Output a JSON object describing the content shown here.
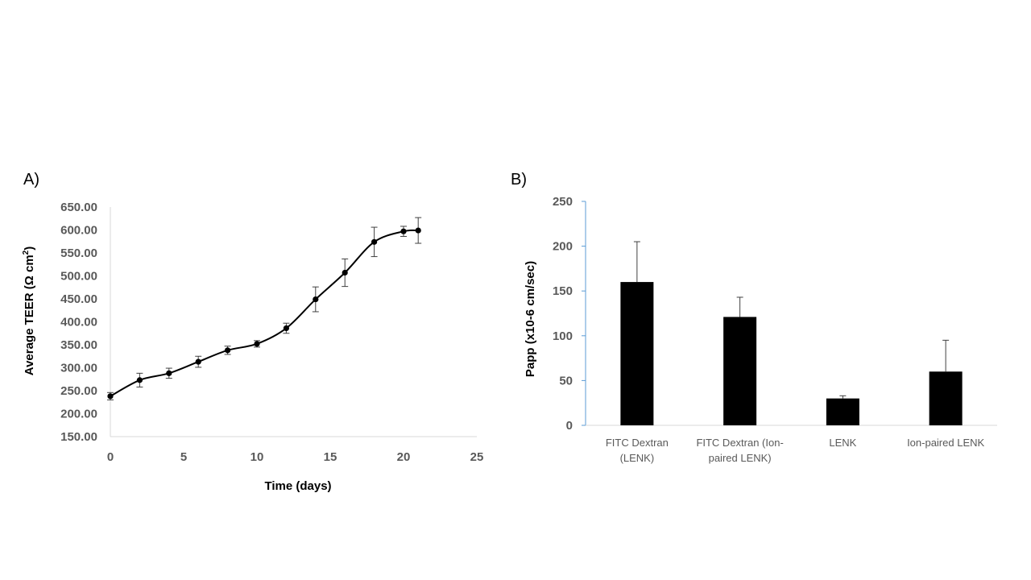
{
  "chart_data": [
    {
      "panel": "A)",
      "type": "line",
      "xlabel": "Time (days)",
      "ylabel_prefix": "Average TEER (Ω cm",
      "ylabel_sup": "2",
      "ylabel_suffix": ")",
      "xlim": [
        0,
        25
      ],
      "ylim": [
        150,
        650
      ],
      "xticks": [
        "0",
        "5",
        "10",
        "15",
        "20",
        "25"
      ],
      "yticks": [
        "150.00",
        "200.00",
        "250.00",
        "300.00",
        "350.00",
        "400.00",
        "450.00",
        "500.00",
        "550.00",
        "600.00",
        "650.00"
      ],
      "grid": false,
      "series": [
        {
          "x": [
            0,
            2,
            4,
            6,
            8,
            10,
            12,
            14,
            16,
            18,
            20,
            21
          ],
          "y": [
            238,
            273,
            288,
            313,
            338,
            352,
            386,
            449,
            507,
            574,
            597,
            599
          ],
          "err": [
            8,
            15,
            11,
            12,
            9,
            7,
            11,
            27,
            30,
            32,
            11,
            28
          ],
          "color": "#000000",
          "marker": "circle",
          "smooth": true
        }
      ]
    },
    {
      "panel": "B)",
      "type": "bar",
      "ylabel": "Papp (x10-6 cm/sec)",
      "ylim": [
        0,
        250
      ],
      "yticks": [
        "0",
        "50",
        "100",
        "150",
        "200",
        "250"
      ],
      "grid": false,
      "categories": [
        [
          "FITC Dextran",
          "(LENK)"
        ],
        [
          "FITC Dextran (Ion-",
          "paired LENK)"
        ],
        [
          "LENK"
        ],
        [
          "Ion-paired LENK"
        ]
      ],
      "values": [
        160,
        121,
        30,
        60
      ],
      "err": [
        45,
        22,
        3,
        35
      ],
      "bar_color": "#000000"
    }
  ]
}
